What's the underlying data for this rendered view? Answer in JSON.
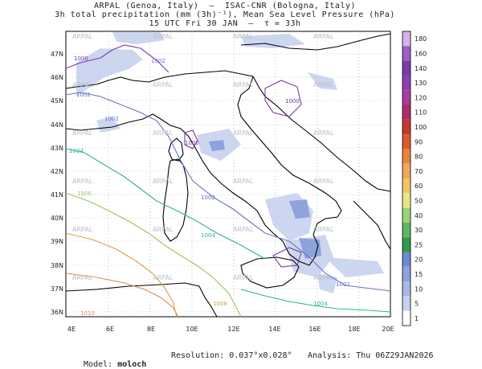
{
  "header": {
    "line1": "ARPAL (Genoa, Italy)  –  ISAC-CNR (Bologna, Italy)",
    "line2": "3h total precipitation (mm (3h)⁻¹), Mean Sea Level Pressure (hPa)",
    "line3": "15 UTC Fri 30 JAN  –  τ = 33h"
  },
  "watermark": "ARPAL",
  "lat_labels": [
    "47N",
    "46N",
    "45N",
    "44N",
    "43N",
    "42N",
    "41N",
    "40N",
    "39N",
    "38N",
    "37N",
    "36N"
  ],
  "lon_labels": [
    "4E",
    "6E",
    "8E",
    "10E",
    "12E",
    "14E",
    "16E",
    "18E",
    "20E"
  ],
  "colorbar": {
    "values": [
      "1",
      "5",
      "10",
      "15",
      "20",
      "25",
      "30",
      "40",
      "50",
      "60",
      "70",
      "80",
      "90",
      "100",
      "110",
      "120",
      "130",
      "140",
      "160",
      "180"
    ],
    "colors": [
      "#ffffff",
      "#c8d2ee",
      "#a9b8e6",
      "#8ea2dc",
      "#6b8ad2",
      "#2f9a4a",
      "#5fb85e",
      "#9dd27a",
      "#e8e58a",
      "#f0c766",
      "#f0a85a",
      "#e9843f",
      "#de5a2d",
      "#c23a2f",
      "#ab2f6a",
      "#a43f9c",
      "#8e3fb0",
      "#7a3aa8",
      "#9c5fc2",
      "#d6b4e6"
    ]
  },
  "isobars": [
    {
      "label": "1000",
      "color": "#7a3aa8"
    },
    {
      "label": "1002",
      "color": "#6a72c8"
    },
    {
      "label": "1004",
      "color": "#2fb2a0"
    },
    {
      "label": "1006",
      "color": "#9cc35c"
    },
    {
      "label": "1008",
      "color": "#d4a24a"
    },
    {
      "label": "1010",
      "color": "#e08a50"
    }
  ],
  "footer": {
    "model_label": "Model:",
    "model_value": "moloch",
    "resolution": "Resolution: 0.037°x0.028°",
    "analysis": "Analysis: Thu 06Z29JAN2026"
  }
}
